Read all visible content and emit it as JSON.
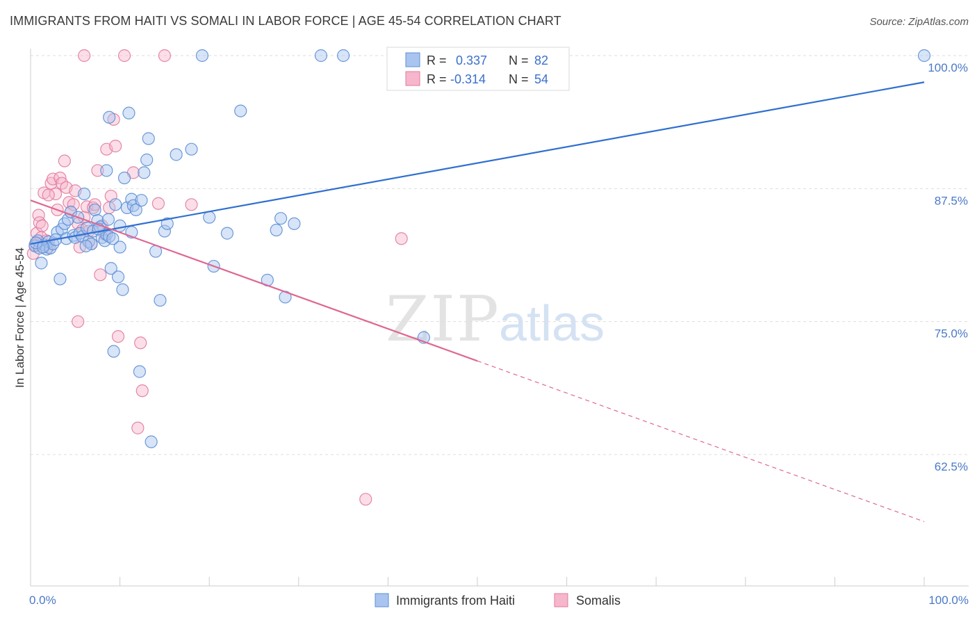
{
  "title": "IMMIGRANTS FROM HAITI VS SOMALI IN LABOR FORCE | AGE 45-54 CORRELATION CHART",
  "source": "Source: ZipAtlas.com",
  "watermark": {
    "zip": "ZIP",
    "atlas": "atlas"
  },
  "chart_data": {
    "type": "scatter",
    "xlabel": "",
    "ylabel": "In Labor Force | Age 45-54",
    "xlim": [
      0,
      100
    ],
    "ylim": [
      50,
      100
    ],
    "x_tick_labels": {
      "left": "0.0%",
      "right": "100.0%"
    },
    "y_ticks": [
      {
        "value": 100,
        "label": "100.0%"
      },
      {
        "value": 87.5,
        "label": "87.5%"
      },
      {
        "value": 75,
        "label": "75.0%"
      },
      {
        "value": 62.5,
        "label": "62.5%"
      }
    ],
    "legend": {
      "position": "top-center",
      "rows": [
        {
          "r_label": "R =",
          "r_value": "0.337",
          "n_label": "N =",
          "n_value": "82"
        },
        {
          "r_label": "R =",
          "r_value": "-0.314",
          "n_label": "N =",
          "n_value": "54"
        }
      ]
    },
    "bottom_legend": [
      "Immigrants from Haiti",
      "Somalis"
    ],
    "colors": {
      "haiti_fill": "#a9c4ee",
      "haiti_stroke": "#5b8fd6",
      "haiti_line": "#2f6fd0",
      "somali_fill": "#f6b6cb",
      "somali_stroke": "#e27a9c",
      "somali_line": "#e06691",
      "value_text": "#3a6fcc",
      "tick_text": "#4a78c8",
      "grid": "#dddddd"
    },
    "series": [
      {
        "name": "Immigrants from Haiti",
        "trend": {
          "x0": 0,
          "y0": 82.3,
          "x1": 100,
          "y1": 97.5,
          "dashed_from": null
        },
        "points": [
          [
            0.5,
            82.1
          ],
          [
            0.8,
            82.6
          ],
          [
            1.0,
            81.9
          ],
          [
            1.2,
            80.5
          ],
          [
            1.5,
            82.2
          ],
          [
            1.8,
            81.8
          ],
          [
            2.0,
            82.5
          ],
          [
            2.2,
            81.9
          ],
          [
            2.5,
            82.3
          ],
          [
            3.0,
            83.4
          ],
          [
            3.3,
            79.0
          ],
          [
            3.5,
            83.7
          ],
          [
            3.8,
            84.2
          ],
          [
            4.0,
            82.8
          ],
          [
            4.2,
            84.6
          ],
          [
            4.5,
            85.3
          ],
          [
            4.8,
            83.1
          ],
          [
            5.0,
            82.9
          ],
          [
            5.3,
            84.8
          ],
          [
            5.5,
            83.3
          ],
          [
            5.8,
            83.0
          ],
          [
            6.0,
            87.0
          ],
          [
            6.3,
            83.8
          ],
          [
            6.5,
            82.5
          ],
          [
            6.8,
            82.3
          ],
          [
            7.0,
            83.5
          ],
          [
            7.2,
            85.5
          ],
          [
            7.5,
            84.5
          ],
          [
            7.8,
            83.9
          ],
          [
            8.0,
            82.9
          ],
          [
            8.3,
            82.6
          ],
          [
            8.5,
            83.2
          ],
          [
            8.7,
            84.6
          ],
          [
            8.5,
            89.2
          ],
          [
            8.8,
            94.2
          ],
          [
            8.8,
            83.0
          ],
          [
            9.0,
            80.0
          ],
          [
            9.3,
            72.2
          ],
          [
            9.5,
            86.0
          ],
          [
            9.8,
            79.2
          ],
          [
            10.0,
            84.0
          ],
          [
            10.0,
            82.0
          ],
          [
            10.3,
            78.0
          ],
          [
            10.5,
            88.5
          ],
          [
            10.8,
            85.7
          ],
          [
            11.0,
            94.6
          ],
          [
            11.3,
            86.5
          ],
          [
            11.3,
            83.4
          ],
          [
            11.5,
            85.9
          ],
          [
            11.8,
            85.5
          ],
          [
            12.2,
            70.3
          ],
          [
            12.4,
            86.4
          ],
          [
            12.7,
            89.0
          ],
          [
            13.0,
            90.2
          ],
          [
            13.2,
            92.2
          ],
          [
            13.5,
            63.7
          ],
          [
            14.0,
            81.6
          ],
          [
            14.5,
            77.0
          ],
          [
            15.0,
            83.5
          ],
          [
            15.3,
            84.2
          ],
          [
            16.3,
            90.7
          ],
          [
            18.0,
            91.2
          ],
          [
            19.2,
            100
          ],
          [
            20.0,
            84.8
          ],
          [
            20.5,
            80.2
          ],
          [
            22.0,
            83.3
          ],
          [
            23.5,
            94.8
          ],
          [
            26.5,
            78.9
          ],
          [
            27.5,
            83.6
          ],
          [
            28.0,
            84.7
          ],
          [
            28.5,
            77.3
          ],
          [
            29.5,
            84.2
          ],
          [
            32.5,
            100
          ],
          [
            35.0,
            100
          ],
          [
            44.0,
            73.5
          ],
          [
            100,
            100
          ],
          [
            0.6,
            82.4
          ],
          [
            1.4,
            82.0
          ],
          [
            2.8,
            82.7
          ],
          [
            6.2,
            82.1
          ],
          [
            7.6,
            83.7
          ],
          [
            9.2,
            82.8
          ]
        ]
      },
      {
        "name": "Somalis",
        "trend": {
          "x0": 0,
          "y0": 86.4,
          "x1": 100,
          "y1": 56.2,
          "dashed_from": 50
        },
        "points": [
          [
            0.3,
            81.4
          ],
          [
            0.5,
            82.2
          ],
          [
            0.7,
            83.3
          ],
          [
            0.9,
            85.0
          ],
          [
            1.0,
            84.3
          ],
          [
            1.2,
            82.9
          ],
          [
            1.3,
            84.0
          ],
          [
            1.5,
            87.1
          ],
          [
            1.8,
            82.6
          ],
          [
            2.0,
            82.0
          ],
          [
            2.3,
            88.0
          ],
          [
            2.5,
            88.4
          ],
          [
            2.8,
            87.0
          ],
          [
            3.0,
            85.5
          ],
          [
            3.3,
            88.5
          ],
          [
            3.5,
            88.0
          ],
          [
            3.8,
            90.1
          ],
          [
            4.0,
            87.6
          ],
          [
            4.3,
            86.2
          ],
          [
            4.5,
            85.3
          ],
          [
            4.8,
            86.0
          ],
          [
            5.0,
            87.3
          ],
          [
            5.3,
            84.2
          ],
          [
            5.5,
            82.0
          ],
          [
            5.3,
            75.0
          ],
          [
            5.8,
            83.6
          ],
          [
            6.0,
            84.8
          ],
          [
            6.3,
            85.8
          ],
          [
            6.5,
            83.5
          ],
          [
            6.8,
            82.3
          ],
          [
            7.0,
            85.7
          ],
          [
            7.2,
            86.0
          ],
          [
            7.5,
            89.2
          ],
          [
            7.8,
            79.4
          ],
          [
            8.0,
            84.0
          ],
          [
            8.3,
            83.2
          ],
          [
            8.5,
            91.2
          ],
          [
            8.8,
            85.7
          ],
          [
            9.0,
            86.8
          ],
          [
            9.3,
            94.0
          ],
          [
            9.5,
            91.5
          ],
          [
            9.8,
            73.6
          ],
          [
            11.5,
            89.0
          ],
          [
            12.0,
            65.0
          ],
          [
            12.3,
            73.0
          ],
          [
            12.5,
            68.5
          ],
          [
            14.3,
            86.1
          ],
          [
            18.0,
            86.0
          ],
          [
            6.0,
            100
          ],
          [
            10.5,
            100
          ],
          [
            15.0,
            100
          ],
          [
            41.5,
            82.8
          ],
          [
            37.5,
            58.3
          ],
          [
            2.0,
            86.9
          ]
        ]
      }
    ]
  }
}
